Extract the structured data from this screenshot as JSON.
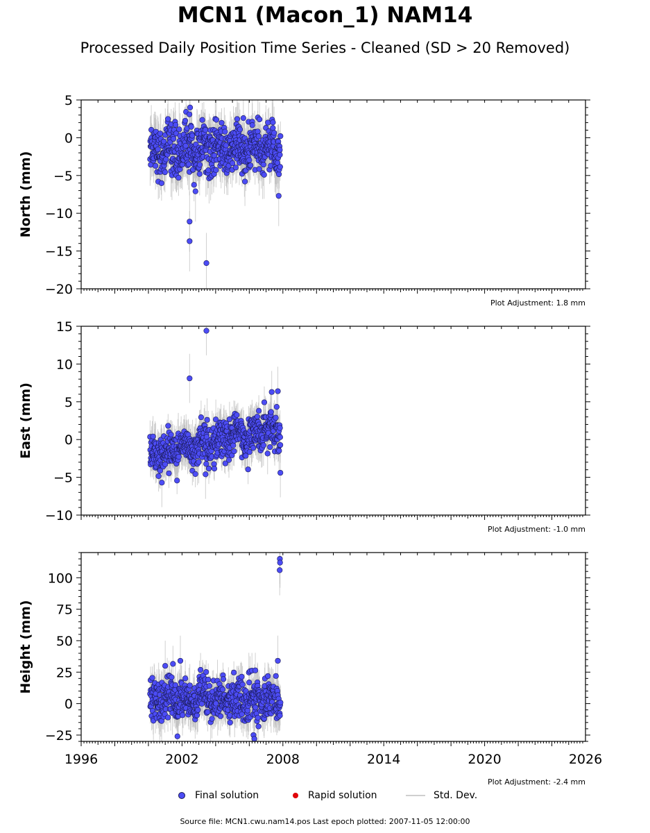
{
  "header": {
    "title": "MCN1 (Macon_1) NAM14",
    "subtitle": "Processed Daily Position Time Series - Cleaned (SD > 20 Removed)"
  },
  "legend": {
    "final": "Final solution",
    "rapid": "Rapid solution",
    "std": "Std. Dev."
  },
  "footer": {
    "source": "Source file: MCN1.cwu.nam14.pos  Last epoch plotted: 2007-11-05 12:00:00"
  },
  "colors": {
    "final": "#4c4cf5",
    "rapid": "#e0060a",
    "std_dev": "#bdbdbd",
    "point_edge": "#1a1a55"
  },
  "chart_data": [
    {
      "type": "scatter",
      "name": "north",
      "ylabel": "North (mm)",
      "ylim": [
        -20,
        5
      ],
      "yticks": [
        5,
        0,
        -5,
        -10,
        -15,
        -20
      ],
      "xlim": [
        1996,
        2026
      ],
      "xticks": [],
      "adjustment": "Plot Adjustment: 1.8 mm",
      "data_span": [
        2000.1,
        2007.85
      ],
      "baseline": -1.6,
      "scatter_sd": 1.6,
      "outliers": [
        {
          "x": 2002.45,
          "y": -11.1
        },
        {
          "x": 2002.45,
          "y": -13.7
        },
        {
          "x": 2003.45,
          "y": -16.6
        },
        {
          "x": 2002.8,
          "y": -7.1
        },
        {
          "x": 2002.48,
          "y": 4.0
        },
        {
          "x": 2002.44,
          "y": 3.1
        },
        {
          "x": 2005.65,
          "y": 2.6
        },
        {
          "x": 2007.75,
          "y": -7.7
        }
      ]
    },
    {
      "type": "scatter",
      "name": "east",
      "ylabel": "East (mm)",
      "ylim": [
        -10,
        15
      ],
      "yticks": [
        15,
        10,
        5,
        0,
        -5,
        -10
      ],
      "xlim": [
        1996,
        2026
      ],
      "xticks": [],
      "adjustment": "Plot Adjustment: -1.0 mm",
      "data_span": [
        2000.1,
        2007.85
      ],
      "trend_start": -2.0,
      "trend_end": 1.6,
      "scatter_sd": 1.3,
      "outliers": [
        {
          "x": 2003.45,
          "y": 14.4
        },
        {
          "x": 2002.45,
          "y": 8.1
        },
        {
          "x": 2007.7,
          "y": 6.4
        },
        {
          "x": 2000.8,
          "y": -5.7
        },
        {
          "x": 2003.4,
          "y": -4.6
        },
        {
          "x": 2007.85,
          "y": -4.4
        }
      ]
    },
    {
      "type": "scatter",
      "name": "height",
      "ylabel": "Height (mm)",
      "ylim": [
        -30,
        120
      ],
      "yticks": [
        100,
        75,
        50,
        25,
        0,
        -25
      ],
      "xlim": [
        1996,
        2026
      ],
      "xticks": [
        1996,
        2002,
        2008,
        2014,
        2020,
        2026
      ],
      "adjustment": "Plot Adjustment: -2.4 mm",
      "data_span": [
        2000.1,
        2007.85
      ],
      "baseline": 3,
      "scatter_sd": 8,
      "outliers": [
        {
          "x": 2007.82,
          "y": 115
        },
        {
          "x": 2007.83,
          "y": 112
        },
        {
          "x": 2007.81,
          "y": 106
        },
        {
          "x": 2007.7,
          "y": 34
        },
        {
          "x": 2001.9,
          "y": 34
        },
        {
          "x": 2001.0,
          "y": 30
        },
        {
          "x": 2006.25,
          "y": -25
        },
        {
          "x": 2006.3,
          "y": -28
        }
      ]
    }
  ]
}
